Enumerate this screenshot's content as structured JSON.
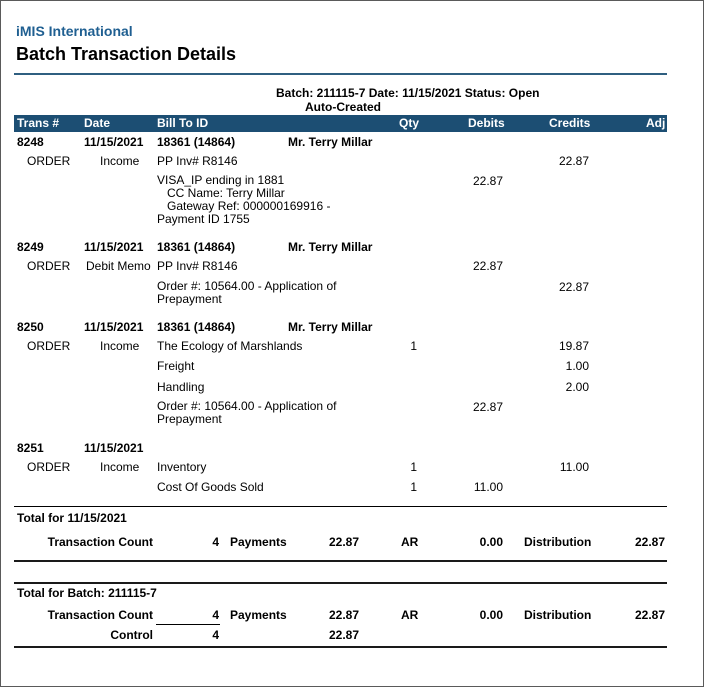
{
  "header": {
    "org_name": "iMIS International",
    "title": "Batch Transaction Details",
    "batch_line": "Batch: 211115-7  Date: 11/15/2021  Status: Open",
    "auto_created": "Auto-Created"
  },
  "columns": {
    "trans": "Trans #",
    "date": "Date",
    "bill_to": "Bill To ID",
    "qty": "Qty",
    "debits": "Debits",
    "credits": "Credits",
    "adj": "Adj"
  },
  "transactions": [
    {
      "trans_no": "8248",
      "date": "11/15/2021",
      "bill_to": "18361 (14864)",
      "name": "Mr. Terry Millar",
      "lines": [
        {
          "type": "ORDER",
          "category": "Income",
          "desc": "PP Inv# R8146",
          "qty": "",
          "debit": "",
          "credit": "22.87"
        },
        {
          "desc_lines": [
            "VISA_IP ending in 1881",
            "   CC Name: Terry Millar",
            "   Gateway Ref: 000000169916 -",
            "Payment ID 1755"
          ],
          "debit": "22.87",
          "credit": ""
        }
      ]
    },
    {
      "trans_no": "8249",
      "date": "11/15/2021",
      "bill_to": "18361 (14864)",
      "name": "Mr. Terry Millar",
      "lines": [
        {
          "type": "ORDER",
          "category": "Debit Memo",
          "desc": "PP Inv# R8146",
          "qty": "",
          "debit": "22.87",
          "credit": ""
        },
        {
          "desc_lines": [
            "Order #: 10564.00 - Application of",
            "Prepayment"
          ],
          "debit": "",
          "credit": "22.87"
        }
      ]
    },
    {
      "trans_no": "8250",
      "date": "11/15/2021",
      "bill_to": "18361 (14864)",
      "name": "Mr. Terry Millar",
      "lines": [
        {
          "type": "ORDER",
          "category": "Income",
          "desc": "The Ecology of Marshlands",
          "qty": "1",
          "debit": "",
          "credit": "19.87"
        },
        {
          "desc": "Freight",
          "credit": "1.00"
        },
        {
          "desc": "Handling",
          "credit": "2.00"
        },
        {
          "desc_lines": [
            "Order #: 10564.00 - Application of",
            "Prepayment"
          ],
          "debit": "22.87",
          "credit": ""
        }
      ]
    },
    {
      "trans_no": "8251",
      "date": "11/15/2021",
      "bill_to": "",
      "name": "",
      "lines": [
        {
          "type": "ORDER",
          "category": "Income",
          "desc": "Inventory",
          "qty": "1",
          "debit": "",
          "credit": "11.00"
        },
        {
          "desc": "Cost Of Goods Sold",
          "qty": "1",
          "debit": "11.00",
          "credit": ""
        }
      ]
    }
  ],
  "total_date": {
    "label": "Total for 11/15/2021",
    "count_label": "Transaction Count",
    "count": "4",
    "payments_label": "Payments",
    "payments": "22.87",
    "ar_label": "AR",
    "ar": "0.00",
    "distribution_label": "Distribution",
    "distribution": "22.87"
  },
  "total_batch": {
    "label": "Total for Batch: 211115-7",
    "count_label": "Transaction Count",
    "count": "4",
    "payments_label": "Payments",
    "payments": "22.87",
    "ar_label": "AR",
    "ar": "0.00",
    "distribution_label": "Distribution",
    "distribution": "22.87",
    "control_label": "Control",
    "control_count": "4",
    "control_amount": "22.87"
  }
}
